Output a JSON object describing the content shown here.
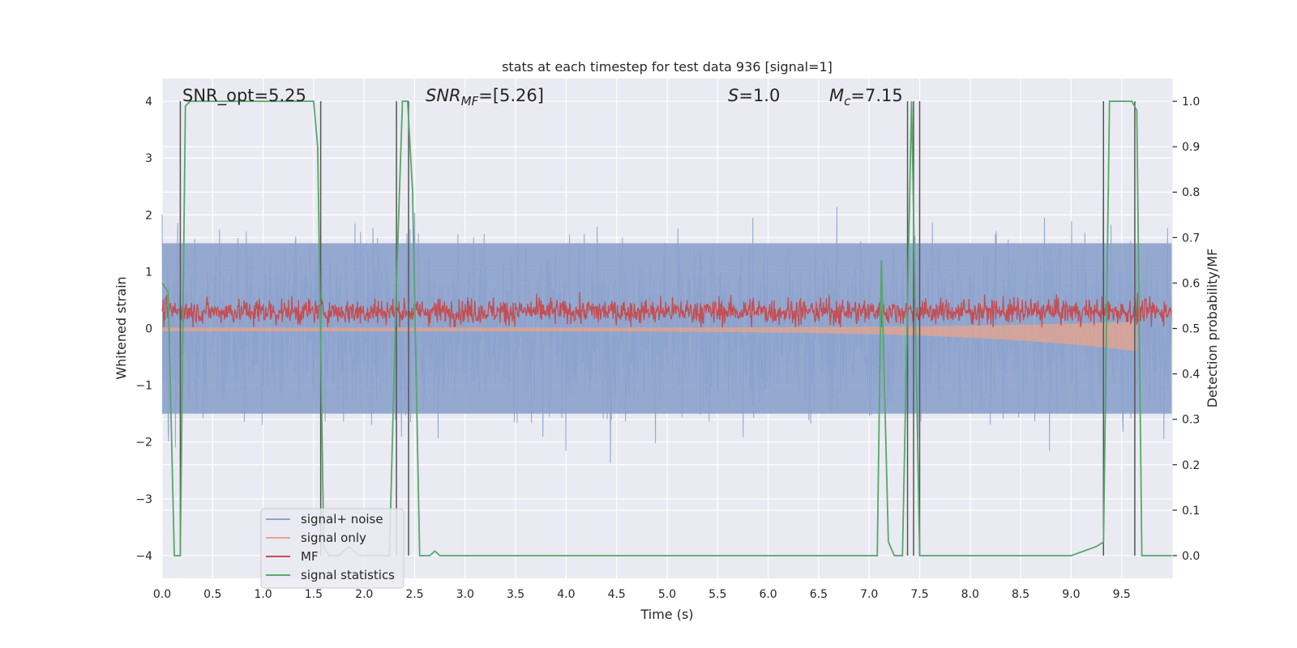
{
  "chart_data": {
    "type": "line",
    "title": "stats at each timestep for test data 936 [signal=1]",
    "xlabel": "Time (s)",
    "ylabel": "Whitened strain",
    "y2label": "Detection probability/MF",
    "xlim": [
      0.0,
      10.0
    ],
    "ylim": [
      -4.4,
      4.4
    ],
    "y2lim": [
      -0.05,
      1.05
    ],
    "grid": true,
    "legend_position": "lower-left",
    "x_ticks": [
      "0.0",
      "0.5",
      "1.0",
      "1.5",
      "2.0",
      "2.5",
      "3.0",
      "3.5",
      "4.0",
      "4.5",
      "5.0",
      "5.5",
      "6.0",
      "6.5",
      "7.0",
      "7.5",
      "8.0",
      "8.5",
      "9.0",
      "9.5"
    ],
    "y_ticks": [
      "−4",
      "−3",
      "−2",
      "−1",
      "0",
      "1",
      "2",
      "3",
      "4"
    ],
    "y2_ticks": [
      "0.0",
      "0.1",
      "0.2",
      "0.3",
      "0.4",
      "0.5",
      "0.6",
      "0.7",
      "0.8",
      "0.9",
      "1.0"
    ],
    "annotations": {
      "snr_opt": "SNR_opt=5.25",
      "snr_mf_label": "SNR",
      "snr_mf_sub": "MF",
      "snr_mf_value": "=[5.26]",
      "s_label": "S",
      "s_value": "=1.0",
      "mc_label": "M",
      "mc_sub": "c",
      "mc_value": "=7.15"
    },
    "series": [
      {
        "name": "signal+ noise",
        "color": "#8ca2cc",
        "description_amplitude": 3.3
      },
      {
        "name": "signal only",
        "color": "#e8a48a"
      },
      {
        "name": "MF",
        "color": "#c44e52"
      },
      {
        "name": "signal statistics",
        "color": "#55a868",
        "axis": "right",
        "x": [
          0.0,
          0.06,
          0.12,
          0.18,
          0.23,
          0.28,
          0.5,
          1.0,
          1.5,
          1.54,
          1.6,
          1.65,
          1.75,
          1.85,
          1.95,
          2.1,
          2.25,
          2.32,
          2.38,
          2.43,
          2.48,
          2.55,
          2.6,
          2.65,
          2.7,
          2.75,
          3.0,
          5.0,
          7.0,
          7.08,
          7.12,
          7.19,
          7.25,
          7.33,
          7.42,
          7.5,
          8.0,
          9.0,
          9.25,
          9.32,
          9.38,
          9.6,
          9.65,
          9.7,
          10.0
        ],
        "y": [
          0.6,
          0.58,
          0.0,
          0.0,
          0.99,
          1.0,
          1.0,
          1.0,
          1.0,
          0.9,
          0.02,
          0.0,
          0.0,
          0.02,
          0.0,
          0.0,
          0.0,
          0.6,
          1.0,
          1.0,
          0.8,
          0.0,
          0.0,
          0.0,
          0.01,
          0.0,
          0.0,
          0.0,
          0.0,
          0.0,
          0.65,
          0.03,
          0.0,
          0.0,
          1.0,
          0.0,
          0.0,
          0.0,
          0.02,
          0.03,
          1.0,
          1.0,
          0.98,
          0.0,
          0.0
        ]
      }
    ],
    "vertical_lines_x": [
      0.18,
      1.57,
      2.32,
      2.44,
      7.38,
      7.44,
      7.5,
      9.32,
      9.63
    ],
    "legend": [
      "signal+ noise",
      "signal only",
      "MF",
      "signal statistics"
    ]
  }
}
